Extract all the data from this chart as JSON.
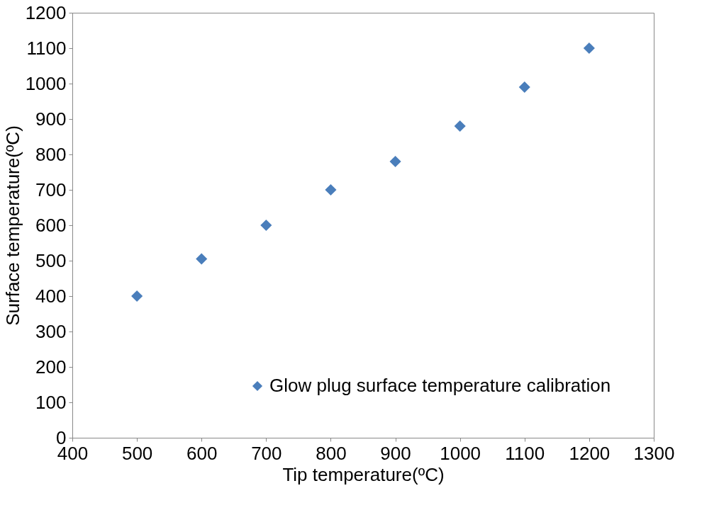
{
  "chart_data": {
    "type": "scatter",
    "xlabel": "Tip temperature(ºC)",
    "ylabel": "Surface temperature(ºC)",
    "x": [
      500,
      600,
      700,
      800,
      900,
      1000,
      1100,
      1200
    ],
    "series": [
      {
        "name": "Glow plug surface temperature calibration",
        "color": "#4a7ebb",
        "values": [
          400,
          505,
          600,
          700,
          780,
          880,
          990,
          1100
        ]
      }
    ],
    "xlim": [
      400,
      1300
    ],
    "xticks": [
      400,
      500,
      600,
      700,
      800,
      900,
      1000,
      1100,
      1200,
      1300
    ],
    "ylim": [
      0,
      1200
    ],
    "yticks": [
      0,
      100,
      200,
      300,
      400,
      500,
      600,
      700,
      800,
      900,
      1000,
      1100,
      1200
    ],
    "marker": "diamond",
    "grid": false,
    "legend": "bottom right"
  }
}
